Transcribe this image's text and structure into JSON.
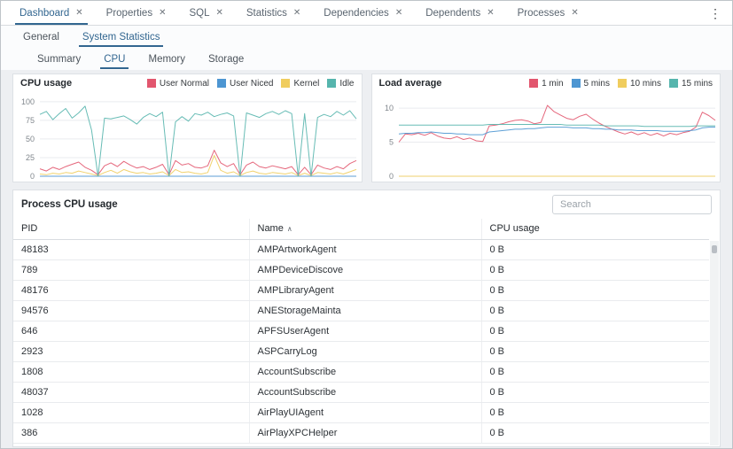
{
  "icons": {
    "close": "✕",
    "kebab": "⋮",
    "sort_asc": "∧"
  },
  "colors": {
    "accent": "#326690",
    "series_red": "#e2566e",
    "series_blue": "#4d96d2",
    "series_yellow": "#f0cd5e",
    "series_teal": "#56b5ad"
  },
  "main_tabs": {
    "items": [
      {
        "label": "Dashboard"
      },
      {
        "label": "Properties"
      },
      {
        "label": "SQL"
      },
      {
        "label": "Statistics"
      },
      {
        "label": "Dependencies"
      },
      {
        "label": "Dependents"
      },
      {
        "label": "Processes"
      }
    ],
    "active": "Dashboard"
  },
  "secondary_tabs": {
    "items": [
      {
        "label": "General"
      },
      {
        "label": "System Statistics"
      }
    ],
    "active": "System Statistics"
  },
  "tertiary_tabs": {
    "items": [
      {
        "label": "Summary"
      },
      {
        "label": "CPU"
      },
      {
        "label": "Memory"
      },
      {
        "label": "Storage"
      }
    ],
    "active": "CPU"
  },
  "chart_data": [
    {
      "type": "line",
      "title": "CPU usage",
      "ylim": [
        0,
        107
      ],
      "yticks": [
        0,
        25,
        50,
        75,
        100
      ],
      "grid": true,
      "legend_position": "top-right",
      "series": [
        {
          "name": "User Normal",
          "color": "#e2566e",
          "values": [
            10,
            7,
            12,
            9,
            13,
            16,
            19,
            12,
            8,
            2,
            14,
            18,
            13,
            20,
            15,
            11,
            13,
            9,
            12,
            16,
            2,
            21,
            15,
            17,
            12,
            11,
            14,
            35,
            18,
            13,
            17,
            2,
            15,
            19,
            13,
            11,
            14,
            12,
            10,
            13,
            2,
            12,
            2,
            15,
            11,
            9,
            13,
            10,
            17,
            21
          ]
        },
        {
          "name": "User Niced",
          "color": "#4d96d2",
          "values": [
            0,
            0,
            0,
            0,
            0,
            0,
            0,
            0,
            0,
            0,
            0,
            0,
            0,
            0,
            0,
            0,
            0,
            0,
            0,
            0,
            0,
            0,
            0,
            0,
            0,
            0,
            0,
            0,
            0,
            0,
            0,
            0,
            0,
            0,
            0,
            0,
            0,
            0,
            0,
            0,
            0,
            0,
            0,
            0,
            0,
            0,
            0,
            0,
            0,
            0
          ]
        },
        {
          "name": "Kernel",
          "color": "#f0cd5e",
          "values": [
            3,
            2,
            4,
            3,
            5,
            4,
            7,
            5,
            3,
            1,
            5,
            8,
            4,
            9,
            6,
            4,
            5,
            3,
            4,
            6,
            1,
            9,
            5,
            6,
            4,
            3,
            5,
            28,
            8,
            4,
            6,
            1,
            5,
            7,
            4,
            3,
            5,
            4,
            3,
            5,
            1,
            4,
            1,
            5,
            4,
            3,
            5,
            3,
            6,
            9
          ]
        },
        {
          "name": "Idle",
          "color": "#56b5ad",
          "values": [
            83,
            87,
            76,
            84,
            91,
            78,
            85,
            94,
            62,
            0,
            78,
            77,
            79,
            81,
            76,
            70,
            79,
            84,
            80,
            86,
            0,
            73,
            80,
            74,
            84,
            82,
            86,
            80,
            83,
            85,
            81,
            0,
            85,
            82,
            79,
            84,
            87,
            83,
            88,
            84,
            0,
            84,
            0,
            79,
            83,
            80,
            87,
            82,
            88,
            77
          ]
        }
      ]
    },
    {
      "type": "line",
      "title": "Load average",
      "ylim": [
        0,
        11.7
      ],
      "yticks": [
        0,
        5,
        10
      ],
      "grid": true,
      "legend_position": "top-right",
      "series": [
        {
          "name": "1 min",
          "color": "#e2566e",
          "values": [
            5.0,
            6.2,
            6.1,
            6.3,
            6.0,
            6.4,
            5.9,
            5.6,
            5.5,
            5.8,
            5.4,
            5.6,
            5.2,
            5.1,
            7.4,
            7.5,
            7.7,
            8.0,
            8.2,
            8.3,
            8.1,
            7.7,
            7.9,
            10.4,
            9.5,
            9.0,
            8.5,
            8.3,
            8.8,
            9.1,
            8.4,
            7.8,
            7.3,
            6.9,
            6.5,
            6.2,
            6.5,
            6.1,
            6.4,
            6.0,
            6.3,
            5.9,
            6.3,
            6.1,
            6.4,
            6.6,
            7.2,
            9.4,
            8.9,
            8.2
          ]
        },
        {
          "name": "5 mins",
          "color": "#4d96d2",
          "values": [
            6.2,
            6.3,
            6.3,
            6.4,
            6.4,
            6.5,
            6.4,
            6.3,
            6.3,
            6.2,
            6.2,
            6.1,
            6.1,
            6.1,
            6.5,
            6.6,
            6.7,
            6.8,
            6.9,
            6.9,
            7.0,
            7.0,
            7.1,
            7.2,
            7.2,
            7.2,
            7.2,
            7.1,
            7.1,
            7.1,
            7.0,
            7.0,
            6.9,
            6.9,
            6.8,
            6.8,
            6.8,
            6.7,
            6.7,
            6.7,
            6.7,
            6.6,
            6.6,
            6.6,
            6.6,
            6.7,
            6.8,
            7.1,
            7.2,
            7.2
          ]
        },
        {
          "name": "10 mins",
          "color": "#f0cd5e",
          "values": [
            0,
            0,
            0,
            0,
            0,
            0,
            0,
            0,
            0,
            0,
            0,
            0,
            0,
            0,
            0,
            0,
            0,
            0,
            0,
            0,
            0,
            0,
            0,
            0,
            0,
            0,
            0,
            0,
            0,
            0,
            0,
            0,
            0,
            0,
            0,
            0,
            0,
            0,
            0,
            0,
            0,
            0,
            0,
            0,
            0,
            0,
            0,
            0,
            0,
            0
          ]
        },
        {
          "name": "15 mins",
          "color": "#56b5ad",
          "values": [
            7.5,
            7.5,
            7.5,
            7.5,
            7.5,
            7.5,
            7.5,
            7.5,
            7.5,
            7.5,
            7.5,
            7.5,
            7.5,
            7.5,
            7.6,
            7.6,
            7.6,
            7.6,
            7.6,
            7.6,
            7.6,
            7.6,
            7.6,
            7.6,
            7.6,
            7.6,
            7.5,
            7.5,
            7.5,
            7.5,
            7.5,
            7.5,
            7.4,
            7.4,
            7.4,
            7.4,
            7.4,
            7.4,
            7.3,
            7.3,
            7.3,
            7.3,
            7.3,
            7.3,
            7.3,
            7.3,
            7.4,
            7.4,
            7.4,
            7.4
          ]
        }
      ]
    }
  ],
  "process_table": {
    "title": "Process CPU usage",
    "search_placeholder": "Search",
    "columns": [
      "PID",
      "Name",
      "CPU usage"
    ],
    "sort_column": "Name",
    "rows": [
      [
        "48183",
        "AMPArtworkAgent",
        "0 B"
      ],
      [
        "789",
        "AMPDeviceDiscove",
        "0 B"
      ],
      [
        "48176",
        "AMPLibraryAgent",
        "0 B"
      ],
      [
        "94576",
        "ANEStorageMainta",
        "0 B"
      ],
      [
        "646",
        "APFSUserAgent",
        "0 B"
      ],
      [
        "2923",
        "ASPCarryLog",
        "0 B"
      ],
      [
        "1808",
        "AccountSubscribe",
        "0 B"
      ],
      [
        "48037",
        "AccountSubscribe",
        "0 B"
      ],
      [
        "1028",
        "AirPlayUIAgent",
        "0 B"
      ],
      [
        "386",
        "AirPlayXPCHelper",
        "0 B"
      ]
    ]
  }
}
